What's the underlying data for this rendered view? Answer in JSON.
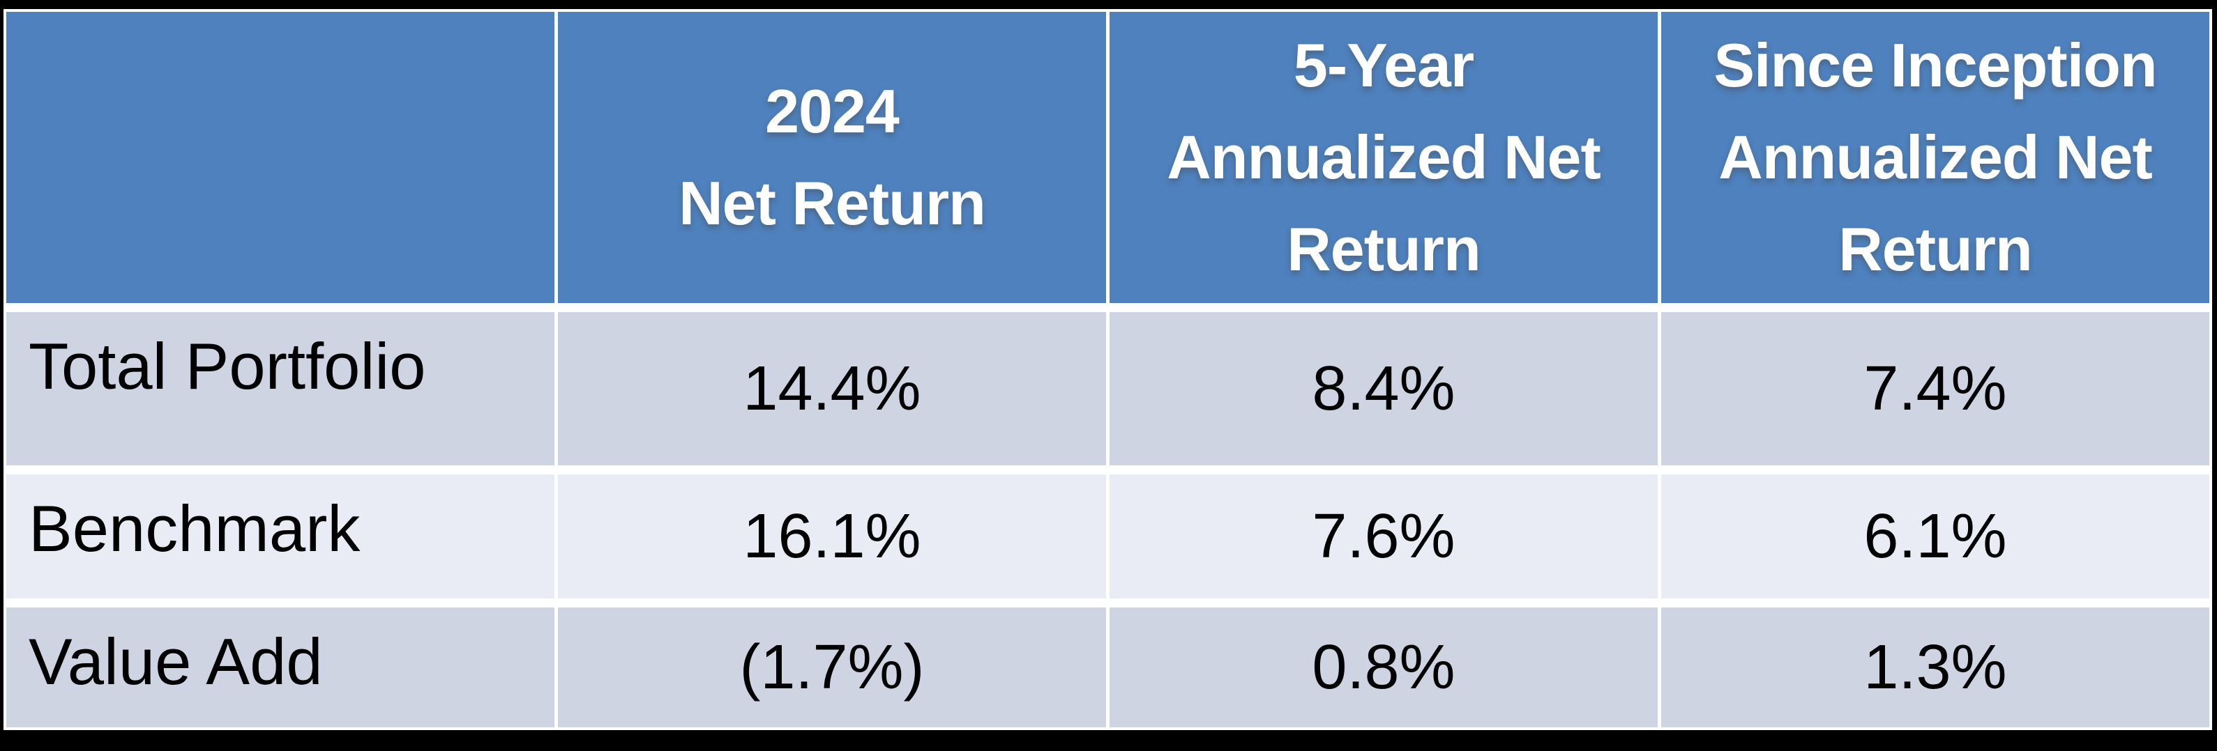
{
  "page": {
    "background_color": "#000000",
    "gridline_color": "#ffffff"
  },
  "table": {
    "header": {
      "bg": "#4E81BD",
      "text_color": "#FFFFFF",
      "columns": [
        {
          "label": ""
        },
        {
          "label": "2024\nNet Return"
        },
        {
          "label": "5-Year\nAnnualized Net\nReturn"
        },
        {
          "label": "Since Inception\nAnnualized Net\nReturn"
        }
      ]
    },
    "band_colors": {
      "odd": "#CFD4E3",
      "even": "#E9ECF5"
    },
    "rows": [
      {
        "label": "Total Portfolio",
        "bg": "#CFD4E3",
        "values": [
          "14.4%",
          "8.4%",
          "7.4%"
        ]
      },
      {
        "label": "Benchmark",
        "bg": "#E9ECF5",
        "values": [
          "16.1%",
          "7.6%",
          "6.1%"
        ]
      },
      {
        "label": "Value Add",
        "bg": "#CFD4E3",
        "values": [
          "(1.7%)",
          "0.8%",
          "1.3%"
        ]
      }
    ]
  },
  "chart_data": {
    "type": "table",
    "title": "",
    "columns": [
      "",
      "2024 Net Return",
      "5-Year Annualized Net Return",
      "Since Inception Annualized Net Return"
    ],
    "rows": [
      [
        "Total Portfolio",
        "14.4%",
        "8.4%",
        "7.4%"
      ],
      [
        "Benchmark",
        "16.1%",
        "7.6%",
        "6.1%"
      ],
      [
        "Value Add",
        "(1.7%)",
        "0.8%",
        "1.3%"
      ]
    ],
    "notes": {
      "header_bg": "#4E81BD",
      "band_odd_bg": "#CFD4E3",
      "band_even_bg": "#E9ECF5",
      "negative_values_in_parentheses": true
    }
  }
}
